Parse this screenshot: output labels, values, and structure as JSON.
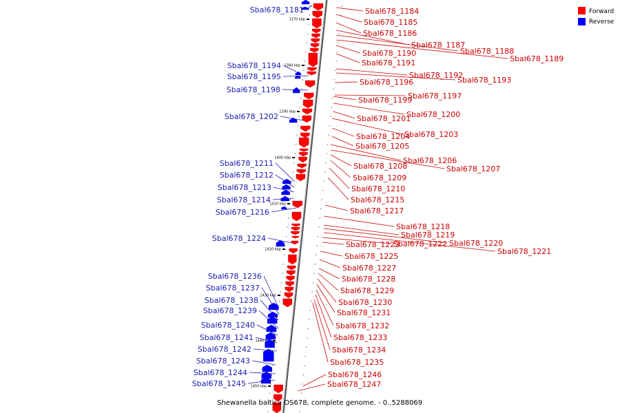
{
  "colors": {
    "forward": "#ff0000",
    "reverse": "#0000ff",
    "text_forward": "#cc0000",
    "text_reverse": "#1a1ab0",
    "axis": "#888888"
  },
  "legend": {
    "forward": "Forward",
    "reverse": "Reverse"
  },
  "caption": "Shewanella baltica OS678, complete genome. - 0..5288069",
  "ticks": [
    "1370 kbp",
    "1380 kbp",
    "1390 kbp",
    "1400 kbp",
    "1410 kbp",
    "1420 kbp",
    "1430 kbp",
    "1440 kbp",
    "1450 kbp"
  ],
  "reverse_genes": [
    "Sbal678_1181",
    "Sbal678_1194",
    "Sbal678_1195",
    "Sbal678_1198",
    "Sbal678_1202",
    "Sbal678_1211",
    "Sbal678_1212",
    "Sbal678_1213",
    "Sbal678_1214",
    "Sbal678_1216",
    "Sbal678_1224",
    "Sbal678_1236",
    "Sbal678_1237",
    "Sbal678_1238",
    "Sbal678_1239",
    "Sbal678_1240",
    "Sbal678_1241",
    "Sbal678_1242",
    "Sbal678_1243",
    "Sbal678_1244",
    "Sbal678_1245"
  ],
  "forward_genes": [
    "Sbal678_1184",
    "Sbal678_1185",
    "Sbal678_1186",
    "Sbal678_1187",
    "Sbal678_1188",
    "Sbal678_1189",
    "Sbal678_1190",
    "Sbal678_1191",
    "Sbal678_1192",
    "Sbal678_1193",
    "Sbal678_1196",
    "Sbal678_1197",
    "Sbal678_1199",
    "Sbal678_1200",
    "Sbal678_1201",
    "Sbal678_1203",
    "Sbal678_1204",
    "Sbal678_1205",
    "Sbal678_1206",
    "Sbal678_1207",
    "Sbal678_1208",
    "Sbal678_1209",
    "Sbal678_1210",
    "Sbal678_1215",
    "Sbal678_1217",
    "Sbal678_1218",
    "Sbal678_1219",
    "Sbal678_1220",
    "Sbal678_1221",
    "Sbal678_1222",
    "Sbal678_1223",
    "Sbal678_1225",
    "Sbal678_1227",
    "Sbal678_1228",
    "Sbal678_1229",
    "Sbal678_1230",
    "Sbal678_1231",
    "Sbal678_1232",
    "Sbal678_1233",
    "Sbal678_1234",
    "Sbal678_1235",
    "Sbal678_1246",
    "Sbal678_1247"
  ]
}
